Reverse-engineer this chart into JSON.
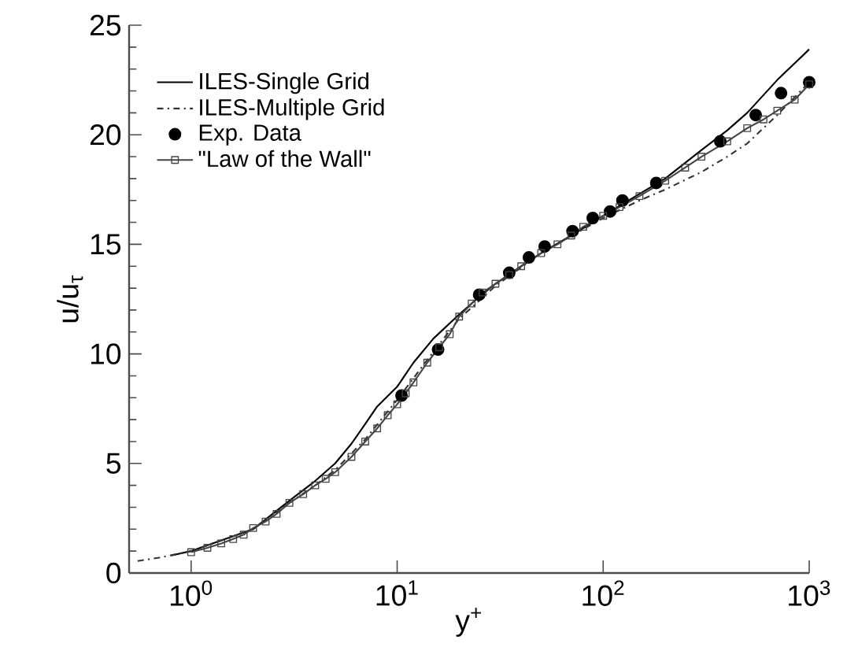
{
  "chart_data": {
    "type": "line",
    "xlabel": "y$^{+}$",
    "ylabel": "u/u$_{τ}$",
    "log": "x",
    "xlim": [
      0.5,
      1000
    ],
    "ylim": [
      0,
      25
    ],
    "xticks": [
      {
        "value": 1,
        "label": "10$^{0}$"
      },
      {
        "value": 10,
        "label": "10$^{1}$"
      },
      {
        "value": 100,
        "label": "10$^{2}$"
      },
      {
        "value": 1000,
        "label": "10$^{3}$"
      }
    ],
    "yticks": [
      0,
      5,
      10,
      15,
      20,
      25
    ],
    "grid": false,
    "legend": "top left",
    "series": [
      {
        "name": "ILES-Single Grid",
        "color": "#000000",
        "line_style": "solid",
        "marker": "none",
        "x": [
          0.8,
          1,
          2,
          3,
          4,
          5,
          6,
          7,
          8,
          10,
          12,
          15,
          20,
          25,
          30,
          40,
          50,
          70,
          100,
          150,
          200,
          300,
          400,
          500,
          700,
          1000
        ],
        "values": [
          0.8,
          1.0,
          2.0,
          3.3,
          4.2,
          5.0,
          5.9,
          6.8,
          7.6,
          8.5,
          9.6,
          10.7,
          11.8,
          12.6,
          13.2,
          14.0,
          14.6,
          15.4,
          16.3,
          17.3,
          18.0,
          19.3,
          20.2,
          21.0,
          22.5,
          23.9
        ]
      },
      {
        "name": "ILES-Multiple Grid",
        "color": "#333333",
        "line_style": "dashdot",
        "marker": "none",
        "x": [
          0.55,
          0.7,
          1,
          2,
          3,
          4,
          5,
          7,
          10,
          15,
          20,
          30,
          50,
          100,
          150,
          200,
          300,
          400,
          500,
          700,
          1000
        ],
        "values": [
          0.55,
          0.7,
          1.0,
          2.0,
          3.2,
          4.0,
          4.7,
          6.1,
          7.9,
          10.1,
          11.6,
          13.1,
          14.6,
          16.2,
          17.0,
          17.5,
          18.3,
          19.0,
          19.6,
          20.9,
          22.4
        ]
      },
      {
        "name": "Exp. Data",
        "type": "scatter",
        "color": "#000000",
        "marker": "circle",
        "x": [
          10.5,
          15.8,
          25,
          35,
          43.6,
          52,
          71,
          89,
          108,
          124,
          181,
          370,
          550,
          730,
          1000
        ],
        "values": [
          8.1,
          10.2,
          12.7,
          13.7,
          14.4,
          14.9,
          15.6,
          16.2,
          16.5,
          17.0,
          17.8,
          19.7,
          20.9,
          21.9,
          22.4
        ]
      },
      {
        "name": "\"Law of the Wall\"",
        "color": "#444444",
        "line_style": "solid",
        "marker": "square",
        "x": [
          1,
          1.2,
          1.4,
          1.6,
          1.8,
          2,
          2.3,
          2.6,
          3,
          3.5,
          4,
          4.5,
          5,
          6,
          7,
          8,
          9,
          10,
          11,
          12,
          14,
          16,
          18,
          20,
          23,
          26,
          30,
          35,
          40,
          50,
          60,
          70,
          80,
          100,
          120,
          150,
          200,
          250,
          300,
          400,
          500,
          600,
          700,
          850,
          1000
        ],
        "values": [
          0.95,
          1.15,
          1.35,
          1.55,
          1.75,
          2.05,
          2.35,
          2.7,
          3.2,
          3.6,
          4.0,
          4.3,
          4.6,
          5.3,
          6.0,
          6.6,
          7.2,
          7.7,
          8.2,
          8.7,
          9.6,
          10.3,
          10.9,
          11.7,
          12.3,
          12.8,
          13.2,
          13.6,
          14.0,
          14.6,
          15.0,
          15.4,
          15.8,
          16.3,
          16.7,
          17.2,
          17.9,
          18.5,
          19.0,
          19.7,
          20.3,
          20.7,
          21.1,
          21.6,
          22.3
        ]
      }
    ]
  }
}
